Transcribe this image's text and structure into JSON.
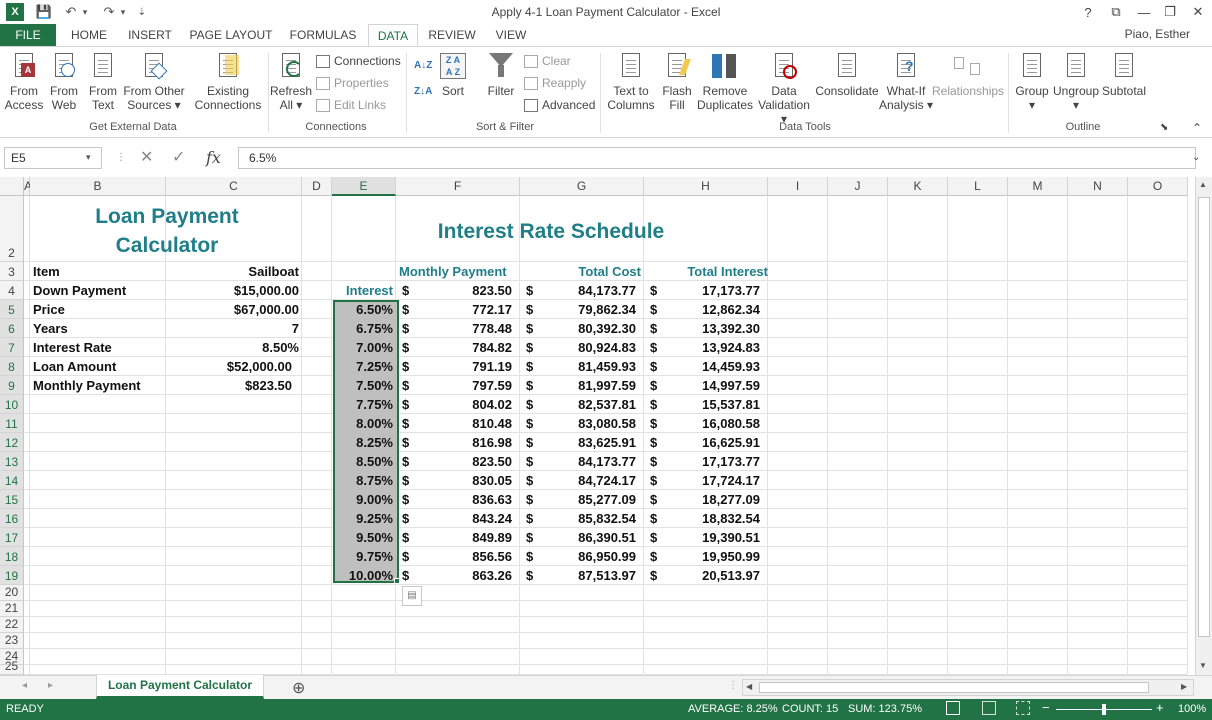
{
  "window": {
    "title": "Apply 4-1 Loan Payment Calculator - Excel",
    "help": "?",
    "ribbon_display": "⧉",
    "minimize": "—",
    "restore": "❐",
    "close": "✕"
  },
  "qat": {
    "excel_logo": "X",
    "save": "💾",
    "undo": "↶",
    "undo_drop": "▾",
    "redo": "↷",
    "redo_drop": "▾",
    "customize": "⇣"
  },
  "tabs": [
    "FILE",
    "HOME",
    "INSERT",
    "PAGE LAYOUT",
    "FORMULAS",
    "DATA",
    "REVIEW",
    "VIEW"
  ],
  "user": "Piao, Esther",
  "ribbon": {
    "get_external_data": {
      "label": "Get External Data",
      "buttons": [
        [
          "From",
          "Access"
        ],
        [
          "From",
          "Web"
        ],
        [
          "From",
          "Text"
        ],
        [
          "From Other",
          "Sources ▾"
        ]
      ]
    },
    "existing_connections": [
      "Existing",
      "Connections"
    ],
    "connections": {
      "label": "Connections",
      "refresh": [
        "Refresh",
        "All ▾"
      ],
      "connections": "Connections",
      "properties": "Properties",
      "edit_links": "Edit Links"
    },
    "sort_filter": {
      "label": "Sort & Filter",
      "sort_az": "A↓Z",
      "sort_za": "Z↓A",
      "sort": "Sort",
      "filter": "Filter",
      "clear": "Clear",
      "reapply": "Reapply",
      "advanced": "Advanced"
    },
    "data_tools": {
      "label": "Data Tools",
      "buttons": [
        [
          "Text to",
          "Columns"
        ],
        [
          "Flash",
          "Fill"
        ],
        [
          "Remove",
          "Duplicates"
        ],
        [
          "Data",
          "Validation ▾"
        ],
        [
          "Consolidate",
          ""
        ],
        [
          "What-If",
          "Analysis ▾"
        ],
        [
          "Relationships",
          ""
        ]
      ]
    },
    "outline": {
      "label": "Outline",
      "buttons": [
        [
          "Group",
          "▾"
        ],
        [
          "Ungroup",
          "▾"
        ],
        [
          "Subtotal",
          ""
        ]
      ]
    },
    "collapse": "⌃",
    "launcher": "⬊"
  },
  "formula_bar": {
    "name_box": "E5",
    "name_drop": "▾",
    "cancel": "✕",
    "enter": "✓",
    "fx": "fx",
    "value": "6.5%",
    "expand": "⌄"
  },
  "columns": [
    "A",
    "B",
    "C",
    "D",
    "E",
    "F",
    "G",
    "H",
    "I",
    "J",
    "K",
    "L",
    "M",
    "N",
    "O"
  ],
  "rows": [
    "2",
    "3",
    "4",
    "5",
    "6",
    "7",
    "8",
    "9",
    "10",
    "11",
    "12",
    "13",
    "14",
    "15",
    "16",
    "17",
    "18",
    "19",
    "20",
    "21",
    "22",
    "23",
    "24",
    "25"
  ],
  "sheet": {
    "calc_title_line1": "Loan Payment",
    "calc_title_line2": "Calculator",
    "schedule_title": "Interest Rate Schedule",
    "item_header": "Item",
    "item_value_header": "Sailboat",
    "items": [
      {
        "label": "Down Payment",
        "value": "$15,000.00"
      },
      {
        "label": "Price",
        "value": "$67,000.00"
      },
      {
        "label": "Years",
        "value": "7"
      },
      {
        "label": "Interest Rate",
        "value": "8.50%"
      },
      {
        "label": "Loan Amount",
        "value": "$52,000.00"
      },
      {
        "label": "Monthly Payment",
        "value": "$823.50"
      }
    ],
    "schedule_headers": {
      "payment": "Monthly Payment",
      "cost": "Total Cost",
      "interest": "Total Interest"
    },
    "interest_label": "Interest",
    "currency": "$",
    "base_row": {
      "payment": "823.50",
      "cost": "84,173.77",
      "interest": "17,173.77"
    },
    "schedule": [
      {
        "rate": "6.50%",
        "payment": "772.17",
        "cost": "79,862.34",
        "interest": "12,862.34"
      },
      {
        "rate": "6.75%",
        "payment": "778.48",
        "cost": "80,392.30",
        "interest": "13,392.30"
      },
      {
        "rate": "7.00%",
        "payment": "784.82",
        "cost": "80,924.83",
        "interest": "13,924.83"
      },
      {
        "rate": "7.25%",
        "payment": "791.19",
        "cost": "81,459.93",
        "interest": "14,459.93"
      },
      {
        "rate": "7.50%",
        "payment": "797.59",
        "cost": "81,997.59",
        "interest": "14,997.59"
      },
      {
        "rate": "7.75%",
        "payment": "804.02",
        "cost": "82,537.81",
        "interest": "15,537.81"
      },
      {
        "rate": "8.00%",
        "payment": "810.48",
        "cost": "83,080.58",
        "interest": "16,080.58"
      },
      {
        "rate": "8.25%",
        "payment": "816.98",
        "cost": "83,625.91",
        "interest": "16,625.91"
      },
      {
        "rate": "8.50%",
        "payment": "823.50",
        "cost": "84,173.77",
        "interest": "17,173.77"
      },
      {
        "rate": "8.75%",
        "payment": "830.05",
        "cost": "84,724.17",
        "interest": "17,724.17"
      },
      {
        "rate": "9.00%",
        "payment": "836.63",
        "cost": "85,277.09",
        "interest": "18,277.09"
      },
      {
        "rate": "9.25%",
        "payment": "843.24",
        "cost": "85,832.54",
        "interest": "18,832.54"
      },
      {
        "rate": "9.50%",
        "payment": "849.89",
        "cost": "86,390.51",
        "interest": "19,390.51"
      },
      {
        "rate": "9.75%",
        "payment": "856.56",
        "cost": "86,950.99",
        "interest": "19,950.99"
      },
      {
        "rate": "10.00%",
        "payment": "863.26",
        "cost": "87,513.97",
        "interest": "20,513.97"
      }
    ]
  },
  "sheet_tabs": {
    "active": "Loan Payment Calculator",
    "prev": "◂",
    "next": "▸",
    "add": "⊕"
  },
  "status": {
    "mode": "READY",
    "average": "AVERAGE: 8.25%",
    "count": "COUNT: 15",
    "sum": "SUM: 123.75%",
    "zoom_out": "−",
    "zoom_in": "+",
    "zoom": "100%"
  },
  "colors": {
    "accent": "#217346",
    "teal": "#1f7e88",
    "highlight": "#bfbfbf"
  }
}
